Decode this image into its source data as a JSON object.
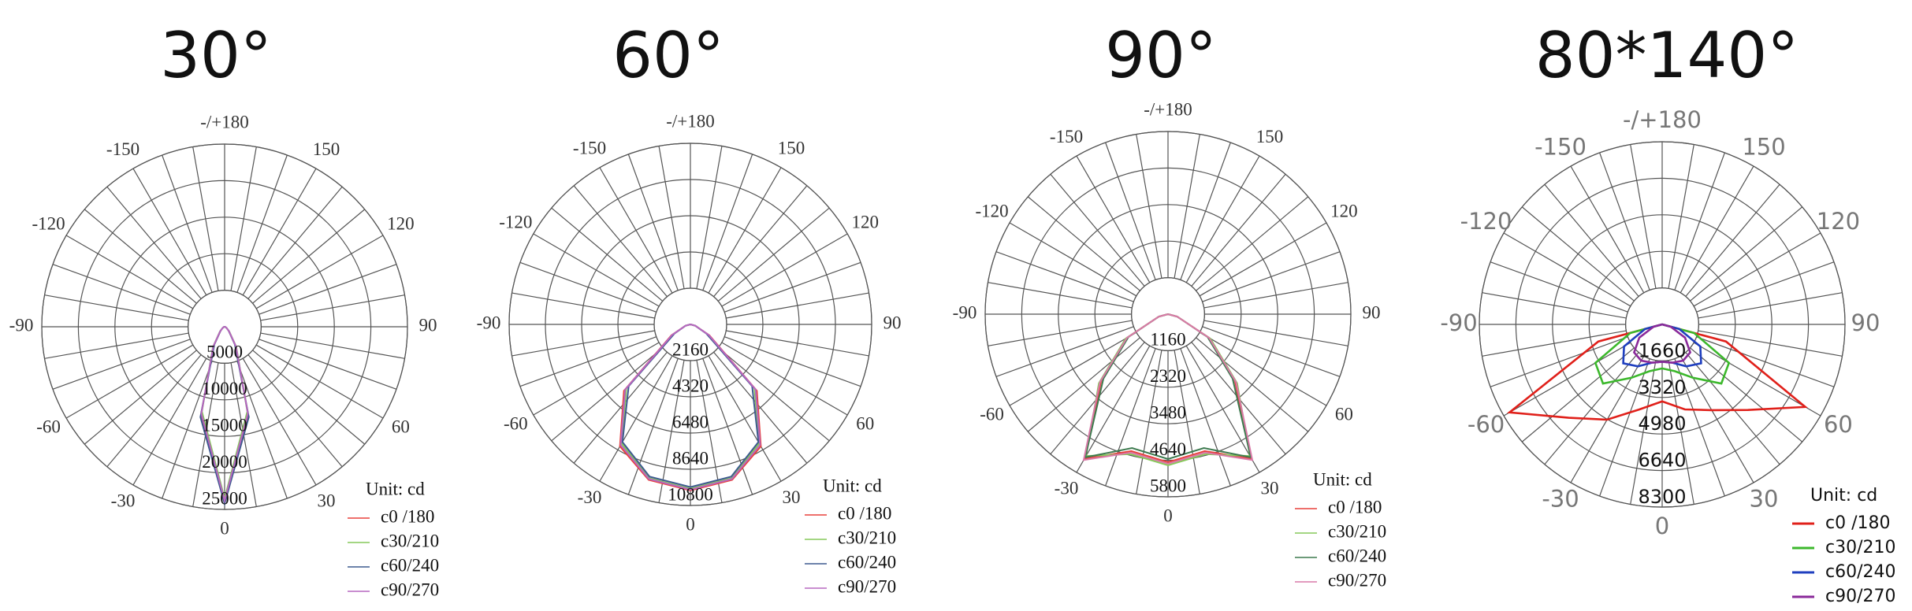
{
  "chart_data": [
    {
      "type": "polar",
      "title": "30°",
      "unit_label": "Unit: cd",
      "angle_ticks": [
        {
          "value": 180,
          "label": "-/+180"
        },
        -150,
        150,
        -120,
        120,
        -90,
        90,
        -60,
        60,
        -30,
        30,
        0
      ],
      "rlim": [
        0,
        25000
      ],
      "rticks": [
        5000,
        10000,
        15000,
        20000,
        25000
      ],
      "x": [
        -90,
        -75,
        -60,
        -45,
        -30,
        -15,
        0,
        15,
        30,
        45,
        60,
        75,
        90
      ],
      "series": [
        {
          "name": "c0 /180",
          "color": "#e8413c",
          "values": [
            0,
            100,
            300,
            800,
            3000,
            12500,
            24000,
            12500,
            3000,
            800,
            300,
            100,
            0
          ]
        },
        {
          "name": "c30/210",
          "color": "#86c95a",
          "values": [
            0,
            100,
            300,
            900,
            3200,
            12000,
            23500,
            12000,
            3200,
            900,
            300,
            100,
            0
          ]
        },
        {
          "name": "c60/240",
          "color": "#3d5a8f",
          "values": [
            0,
            100,
            300,
            800,
            2800,
            12800,
            24200,
            12800,
            2800,
            800,
            300,
            100,
            0
          ]
        },
        {
          "name": "c90/270",
          "color": "#b768c0",
          "values": [
            0,
            100,
            300,
            850,
            3100,
            12300,
            23800,
            12300,
            3100,
            850,
            300,
            100,
            0
          ]
        }
      ]
    },
    {
      "type": "polar",
      "title": "60°",
      "unit_label": "Unit: cd",
      "angle_ticks": [
        {
          "value": 180,
          "label": "-/+180"
        },
        -150,
        150,
        -120,
        120,
        -90,
        90,
        -60,
        60,
        -30,
        30,
        0
      ],
      "rlim": [
        0,
        10800
      ],
      "rticks": [
        2160,
        4320,
        6480,
        8640,
        10800
      ],
      "x": [
        -90,
        -75,
        -60,
        -45,
        -30,
        -15,
        0,
        15,
        30,
        45,
        60,
        75,
        90
      ],
      "series": [
        {
          "name": "c0 /180",
          "color": "#e8413c",
          "values": [
            0,
            300,
            1300,
            5600,
            8400,
            9600,
            9900,
            9600,
            8400,
            5600,
            1300,
            300,
            0
          ]
        },
        {
          "name": "c30/210",
          "color": "#86c95a",
          "values": [
            0,
            300,
            1200,
            5400,
            8200,
            9500,
            9800,
            9500,
            8200,
            5400,
            1200,
            300,
            0
          ]
        },
        {
          "name": "c60/240",
          "color": "#3d5a8f",
          "values": [
            0,
            300,
            1100,
            5200,
            8100,
            9400,
            9700,
            9400,
            8100,
            5200,
            1100,
            300,
            0
          ]
        },
        {
          "name": "c90/270",
          "color": "#b768c0",
          "values": [
            0,
            300,
            1250,
            5500,
            8300,
            9550,
            9850,
            9550,
            8300,
            5500,
            1250,
            300,
            0
          ]
        }
      ]
    },
    {
      "type": "polar",
      "title": "90°",
      "unit_label": "Unit: cd",
      "angle_ticks": [
        {
          "value": 180,
          "label": "-/+180"
        },
        -150,
        150,
        -120,
        120,
        -90,
        90,
        -60,
        60,
        -30,
        30,
        0
      ],
      "rlim": [
        0,
        5800
      ],
      "rticks": [
        1160,
        2320,
        3480,
        4640,
        5800
      ],
      "x": [
        -90,
        -75,
        -60,
        -45,
        -30,
        -15,
        0,
        15,
        30,
        45,
        60,
        75,
        90
      ],
      "series": [
        {
          "name": "c0 /180",
          "color": "#e8413c",
          "values": [
            0,
            300,
            1500,
            3000,
            5300,
            4500,
            4700,
            4500,
            5300,
            3000,
            1500,
            300,
            0
          ]
        },
        {
          "name": "c30/210",
          "color": "#86c95a",
          "values": [
            0,
            300,
            1550,
            3100,
            5200,
            4600,
            4800,
            4600,
            5200,
            3100,
            1550,
            300,
            0
          ]
        },
        {
          "name": "c60/240",
          "color": "#3d7a4f",
          "values": [
            0,
            300,
            1450,
            2900,
            5250,
            4400,
            4600,
            4400,
            5250,
            2900,
            1450,
            300,
            0
          ]
        },
        {
          "name": "c90/270",
          "color": "#d97aa8",
          "values": [
            0,
            300,
            1500,
            3050,
            5350,
            4550,
            4750,
            4550,
            5350,
            3050,
            1500,
            300,
            0
          ]
        }
      ]
    },
    {
      "type": "polar",
      "title": "80*140°",
      "unit_label": "Unit: cd",
      "angle_ticks": [
        {
          "value": 180,
          "label": "-/+180"
        },
        -150,
        150,
        -120,
        120,
        -90,
        90,
        -60,
        60,
        -30,
        30,
        0
      ],
      "rlim": [
        0,
        8300
      ],
      "rticks": [
        1660,
        3320,
        4980,
        6640,
        8300
      ],
      "x": [
        -90,
        -75,
        -60,
        -45,
        -30,
        -15,
        0,
        15,
        30,
        45,
        60,
        75,
        90
      ],
      "series": [
        {
          "name": "c0 /180",
          "color": "#e0201a",
          "values": [
            0,
            3000,
            8000,
            6000,
            5000,
            4000,
            3500,
            4000,
            4500,
            5500,
            7500,
            3000,
            0
          ]
        },
        {
          "name": "c30/210",
          "color": "#3cb82c",
          "values": [
            0,
            1500,
            3500,
            3800,
            2800,
            2200,
            2000,
            2200,
            2800,
            3800,
            3500,
            1500,
            0
          ]
        },
        {
          "name": "c60/240",
          "color": "#1f3fbf",
          "values": [
            0,
            800,
            2000,
            2500,
            2200,
            1800,
            1700,
            1800,
            2200,
            2500,
            2000,
            800,
            0
          ]
        },
        {
          "name": "c90/270",
          "color": "#8a2a9a",
          "values": [
            0,
            400,
            1200,
            1800,
            1900,
            1800,
            1700,
            1800,
            1900,
            1800,
            1200,
            400,
            0
          ]
        }
      ]
    }
  ]
}
